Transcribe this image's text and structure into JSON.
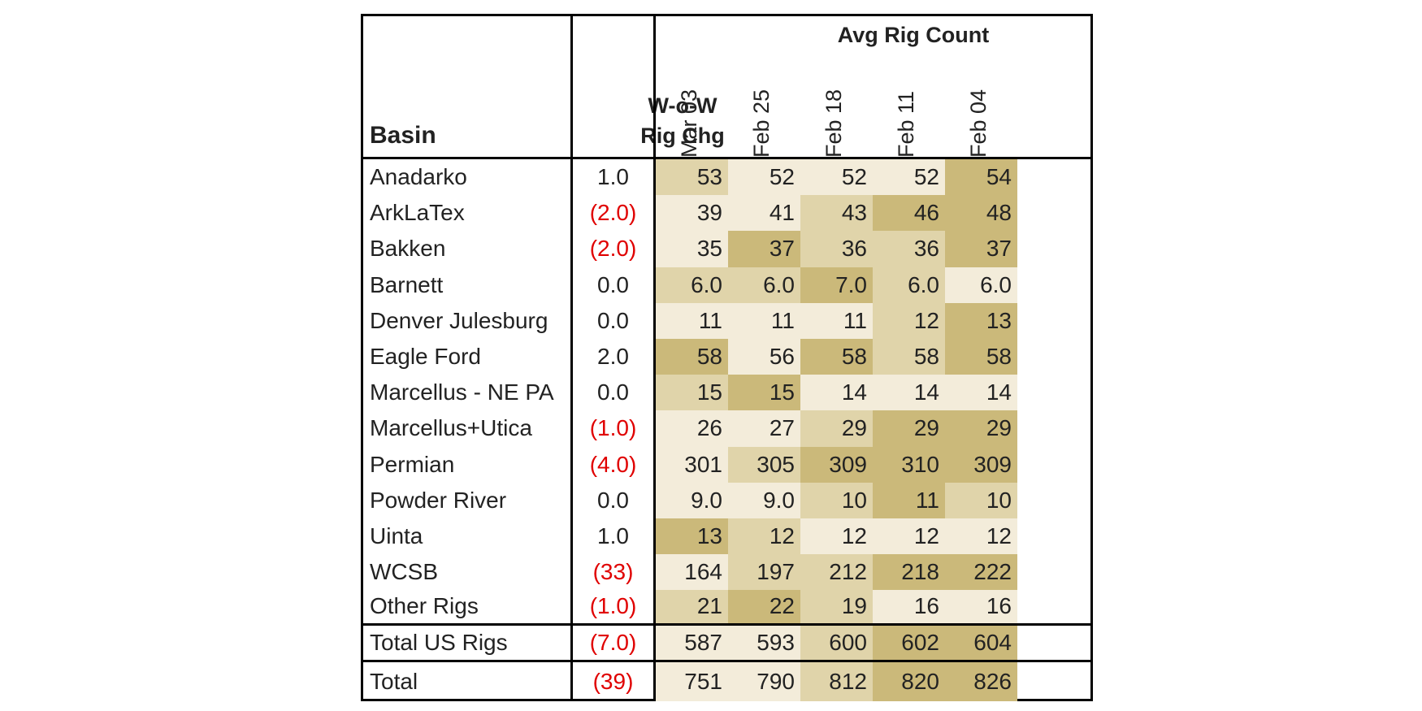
{
  "chart_data": {
    "type": "table",
    "title": "Avg Rig Count",
    "columns": {
      "basin": "Basin",
      "change": [
        "W-o-W",
        "Rig Chg"
      ],
      "dates": [
        "Mar 03",
        "Feb 25",
        "Feb 18",
        "Feb 11",
        "Feb 04"
      ]
    },
    "rows": [
      {
        "basin": "Anadarko",
        "change": "1.0",
        "negative": false,
        "values": [
          "53",
          "52",
          "52",
          "52",
          "54"
        ]
      },
      {
        "basin": "ArkLaTex",
        "change": "(2.0)",
        "negative": true,
        "values": [
          "39",
          "41",
          "43",
          "46",
          "48"
        ]
      },
      {
        "basin": "Bakken",
        "change": "(2.0)",
        "negative": true,
        "values": [
          "35",
          "37",
          "36",
          "36",
          "37"
        ]
      },
      {
        "basin": "Barnett",
        "change": "0.0",
        "negative": false,
        "values": [
          "6.0",
          "6.0",
          "7.0",
          "6.0",
          "6.0"
        ]
      },
      {
        "basin": "Denver Julesburg",
        "change": "0.0",
        "negative": false,
        "values": [
          "11",
          "11",
          "11",
          "12",
          "13"
        ]
      },
      {
        "basin": "Eagle Ford",
        "change": "2.0",
        "negative": false,
        "values": [
          "58",
          "56",
          "58",
          "58",
          "58"
        ]
      },
      {
        "basin": "Marcellus - NE PA",
        "change": "0.0",
        "negative": false,
        "values": [
          "15",
          "15",
          "14",
          "14",
          "14"
        ]
      },
      {
        "basin": "Marcellus+Utica",
        "change": "(1.0)",
        "negative": true,
        "values": [
          "26",
          "27",
          "29",
          "29",
          "29"
        ]
      },
      {
        "basin": "Permian",
        "change": "(4.0)",
        "negative": true,
        "values": [
          "301",
          "305",
          "309",
          "310",
          "309"
        ]
      },
      {
        "basin": "Powder River",
        "change": "0.0",
        "negative": false,
        "values": [
          "9.0",
          "9.0",
          "10",
          "11",
          "10"
        ]
      },
      {
        "basin": "Uinta",
        "change": "1.0",
        "negative": false,
        "values": [
          "13",
          "12",
          "12",
          "12",
          "12"
        ]
      },
      {
        "basin": "WCSB",
        "change": "(33)",
        "negative": true,
        "values": [
          "164",
          "197",
          "212",
          "218",
          "222"
        ]
      },
      {
        "basin": "Other Rigs",
        "change": "(1.0)",
        "negative": true,
        "values": [
          "21",
          "22",
          "19",
          "16",
          "16"
        ]
      },
      {
        "basin": "Total US Rigs",
        "change": "(7.0)",
        "negative": true,
        "values": [
          "587",
          "593",
          "600",
          "602",
          "604"
        ]
      },
      {
        "basin": "Total",
        "change": "(39)",
        "negative": true,
        "values": [
          "751",
          "790",
          "812",
          "820",
          "826"
        ]
      }
    ],
    "shades": [
      [
        2,
        1,
        1,
        1,
        3
      ],
      [
        1,
        1,
        2,
        3,
        3
      ],
      [
        1,
        3,
        2,
        2,
        3
      ],
      [
        2,
        2,
        3,
        2,
        1
      ],
      [
        1,
        1,
        1,
        2,
        3
      ],
      [
        3,
        1,
        3,
        2,
        3
      ],
      [
        2,
        3,
        1,
        1,
        1
      ],
      [
        1,
        1,
        2,
        3,
        3
      ],
      [
        1,
        2,
        3,
        3,
        3
      ],
      [
        1,
        1,
        2,
        3,
        2
      ],
      [
        3,
        2,
        1,
        1,
        1
      ],
      [
        1,
        2,
        2,
        3,
        3
      ],
      [
        2,
        3,
        2,
        1,
        1
      ],
      [
        1,
        1,
        2,
        3,
        3
      ],
      [
        1,
        1,
        2,
        3,
        3
      ]
    ],
    "colors": {
      "shade_1": "#f3ecda",
      "shade_2": "#e0d4aa",
      "shade_3": "#cbb97a",
      "negative_text": "#e00000",
      "text": "#222222",
      "border": "#000000"
    }
  }
}
